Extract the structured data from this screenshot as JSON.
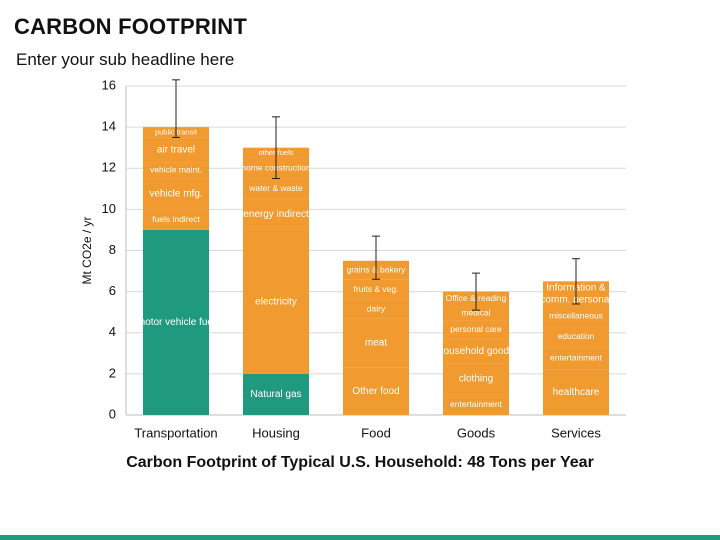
{
  "header": {
    "title": "CARBON FOOTPRINT",
    "subtitle": "Enter your sub headline here"
  },
  "caption": "Carbon Footprint of Typical U.S. Household: 48 Tons per Year",
  "colors": {
    "orange": "#F19A2F",
    "teal": "#1F9A7E",
    "grid": "#D9D9D9",
    "bottom_bar": "#1F9A7E"
  },
  "chart_data": {
    "type": "bar",
    "stacked": true,
    "ylabel": "Mt CO2e / yr",
    "ylim": [
      0,
      16
    ],
    "yticks": [
      0,
      2,
      4,
      6,
      8,
      10,
      12,
      14,
      16
    ],
    "grid": true,
    "categories": [
      "Transportation",
      "Housing",
      "Food",
      "Goods",
      "Services"
    ],
    "stacks": [
      {
        "category": "Transportation",
        "error_bar": [
          13.5,
          16.3
        ],
        "segments": [
          {
            "label": "motor vehicle fuel",
            "value": 9.0,
            "color": "teal"
          },
          {
            "label": "fuels indirect",
            "value": 1.0,
            "color": "orange"
          },
          {
            "label": "vehicle mfg.",
            "value": 1.5,
            "color": "orange"
          },
          {
            "label": "vehicle maint.",
            "value": 0.8,
            "color": "orange"
          },
          {
            "label": "air travel",
            "value": 1.2,
            "color": "orange"
          },
          {
            "label": "public transit",
            "value": 0.5,
            "color": "orange"
          }
        ]
      },
      {
        "category": "Housing",
        "error_bar": [
          11.5,
          14.5
        ],
        "segments": [
          {
            "label": "Natural gas",
            "value": 2.0,
            "color": "teal"
          },
          {
            "label": "electricity",
            "value": 7.0,
            "color": "orange"
          },
          {
            "label": "energy indirect",
            "value": 1.5,
            "color": "orange"
          },
          {
            "label": "water & waste",
            "value": 1.0,
            "color": "orange"
          },
          {
            "label": "home construction",
            "value": 1.0,
            "color": "orange"
          },
          {
            "label": "other fuels",
            "value": 0.5,
            "color": "orange"
          }
        ]
      },
      {
        "category": "Food",
        "error_bar": [
          6.6,
          8.7
        ],
        "segments": [
          {
            "label": "Other food",
            "value": 2.3,
            "color": "orange"
          },
          {
            "label": "meat",
            "value": 2.4,
            "color": "orange"
          },
          {
            "label": "dairy",
            "value": 0.9,
            "color": "orange"
          },
          {
            "label": "fruits & veg.",
            "value": 1.0,
            "color": "orange"
          },
          {
            "label": "grains & bakery",
            "value": 0.9,
            "color": "orange"
          }
        ]
      },
      {
        "category": "Goods",
        "error_bar": [
          5.1,
          6.9
        ],
        "segments": [
          {
            "label": "entertainment",
            "value": 1.0,
            "color": "orange"
          },
          {
            "label": "clothing",
            "value": 1.5,
            "color": "orange"
          },
          {
            "label": "household goods",
            "value": 1.2,
            "color": "orange"
          },
          {
            "label": "personal care",
            "value": 0.9,
            "color": "orange"
          },
          {
            "label": "medical",
            "value": 0.7,
            "color": "orange"
          },
          {
            "label": "Office & reading",
            "value": 0.7,
            "color": "orange"
          }
        ]
      },
      {
        "category": "Services",
        "error_bar": [
          5.4,
          7.6
        ],
        "segments": [
          {
            "label": "healthcare",
            "value": 2.2,
            "color": "orange"
          },
          {
            "label": "entertainment",
            "value": 1.1,
            "color": "orange"
          },
          {
            "label": "education",
            "value": 1.0,
            "color": "orange"
          },
          {
            "label": "miscellaneous",
            "value": 1.0,
            "color": "orange"
          },
          {
            "label": "Information & comm. personal",
            "value": 1.2,
            "color": "orange"
          }
        ]
      }
    ]
  }
}
